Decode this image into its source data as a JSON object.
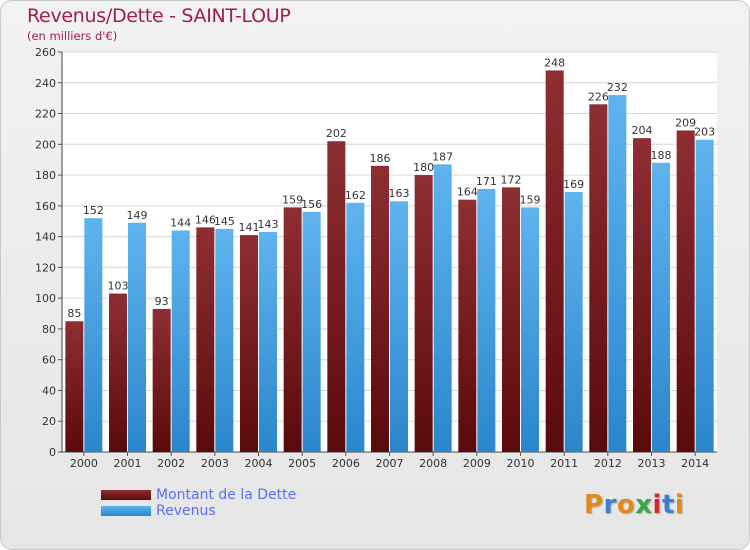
{
  "chart_data": {
    "type": "bar",
    "title": "Revenus/Dette - SAINT-LOUP",
    "subtitle": "(en milliers d'€)",
    "categories": [
      "2000",
      "2001",
      "2002",
      "2003",
      "2004",
      "2005",
      "2006",
      "2007",
      "2008",
      "2009",
      "2010",
      "2011",
      "2012",
      "2013",
      "2014"
    ],
    "series": [
      {
        "name": "Montant de la Dette",
        "color": "#7a1a1e",
        "values": [
          85,
          103,
          93,
          146,
          141,
          159,
          202,
          186,
          180,
          164,
          172,
          248,
          226,
          204,
          209
        ]
      },
      {
        "name": "Revenus",
        "color": "#3a9ee4",
        "values": [
          152,
          149,
          144,
          145,
          143,
          156,
          162,
          163,
          187,
          171,
          159,
          169,
          232,
          188,
          203
        ]
      }
    ],
    "ylim": [
      0,
      260
    ],
    "y_ticks": [
      0,
      20,
      40,
      60,
      80,
      100,
      120,
      140,
      160,
      180,
      200,
      220,
      240,
      260
    ],
    "grid": true,
    "legend_position": "bottom-left"
  },
  "logo": {
    "text": "Proxiti",
    "letter_colors": [
      "#e08a1c",
      "#3a7fd0",
      "#e08a1c",
      "#3aa64a",
      "#d8262a",
      "#3a7fd0",
      "#e08a1c"
    ]
  }
}
